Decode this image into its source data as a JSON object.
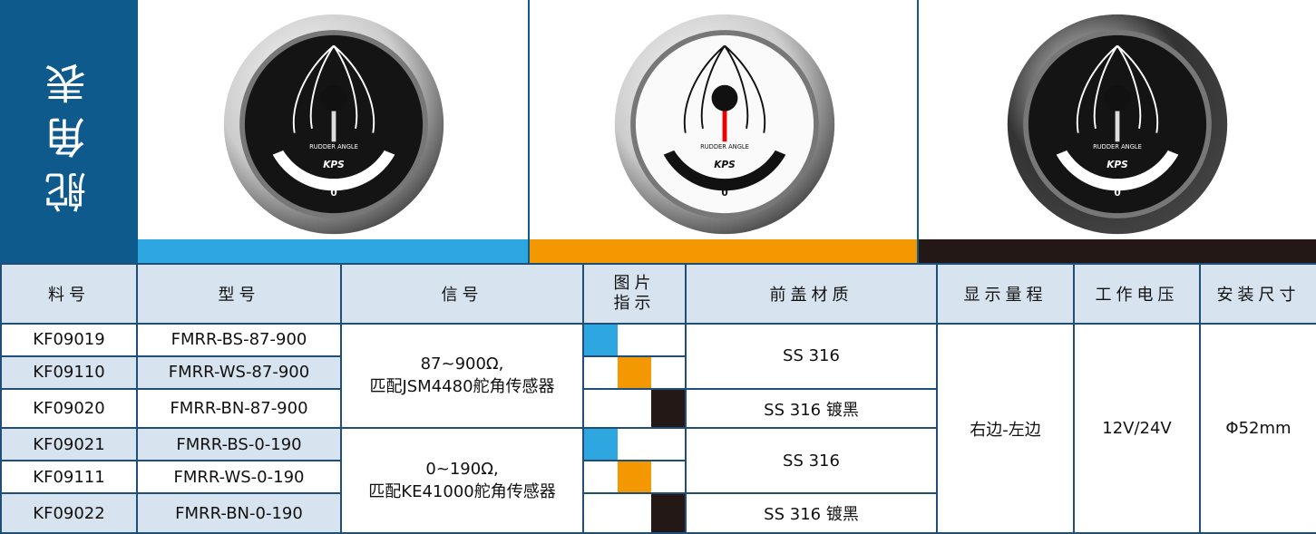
{
  "sidebar": {
    "title": "舵角表"
  },
  "gauge": {
    "label": "RUDDER ANGLE",
    "brand": "KPS",
    "zero": "0"
  },
  "table": {
    "headers": [
      "料号",
      "型号",
      "信号",
      "图片指示",
      "前盖材质",
      "显示量程",
      "工作电压",
      "安装尺寸"
    ],
    "rows": [
      [
        "KF09019",
        "FMRR-BS-87-900"
      ],
      [
        "KF09110",
        "FMRR-WS-87-900"
      ],
      [
        "KF09020",
        "FMRR-BN-87-900"
      ],
      [
        "KF09021",
        "FMRR-BS-0-190"
      ],
      [
        "KF09111",
        "FMRR-WS-0-190"
      ],
      [
        "KF09022",
        "FMRR-BN-0-190"
      ]
    ],
    "signals": [
      [
        "87~900Ω,",
        "匹配JSM4480舵角传感器"
      ],
      [
        "0~190Ω,",
        "匹配KE41000舵角传感器"
      ]
    ],
    "materials": [
      "SS 316",
      "SS 316 镀黑",
      "SS 316",
      "SS 316 镀黑"
    ],
    "range": "右边-左边",
    "voltage": "12V/24V",
    "size": "Φ52mm"
  }
}
